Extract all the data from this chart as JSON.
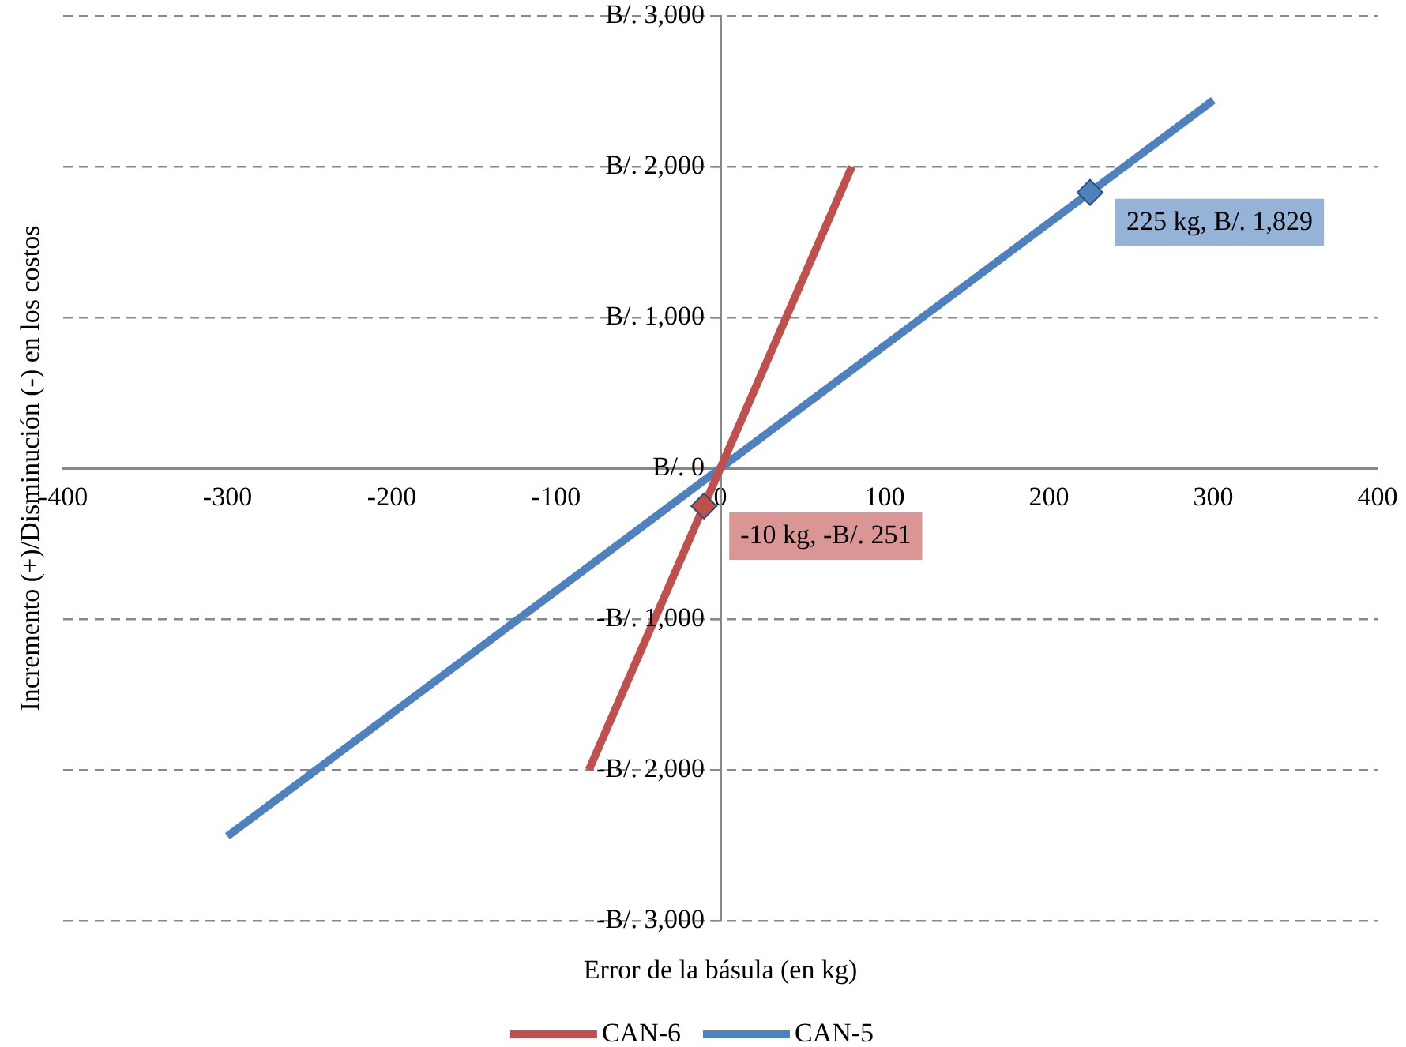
{
  "chart_data": {
    "type": "line",
    "xlabel": "Error de la básula (en kg)",
    "ylabel": "Incremento (+)/Disminución (-) en los costos",
    "xlim": [
      -400,
      400
    ],
    "xticks": [
      -400,
      -300,
      -200,
      -100,
      0,
      100,
      200,
      300,
      400
    ],
    "ylim": [
      -3000,
      3000
    ],
    "yticks": [
      {
        "value": -3000,
        "label": "-B/. 3,000"
      },
      {
        "value": -2000,
        "label": "-B/. 2,000"
      },
      {
        "value": -1000,
        "label": "-B/. 1,000"
      },
      {
        "value": 0,
        "label": "B/. 0"
      },
      {
        "value": 1000,
        "label": "B/. 1,000"
      },
      {
        "value": 2000,
        "label": "B/. 2,000"
      },
      {
        "value": 3000,
        "label": "B/. 3,000"
      }
    ],
    "grid": "y",
    "legend": "bottom",
    "series": [
      {
        "name": "CAN-6",
        "color": "#c0504d",
        "x": [
          -80,
          80
        ],
        "values": [
          -2000,
          2000
        ]
      },
      {
        "name": "CAN-5",
        "color": "#4f81bd",
        "x": [
          -300,
          300
        ],
        "values": [
          -2440,
          2440
        ]
      }
    ],
    "annotations": [
      {
        "text": "-10 kg, -B/. 251",
        "x": -10,
        "y": -251
      },
      {
        "text": "225 kg, B/. 1,829",
        "x": 225,
        "y": 1829
      }
    ]
  }
}
